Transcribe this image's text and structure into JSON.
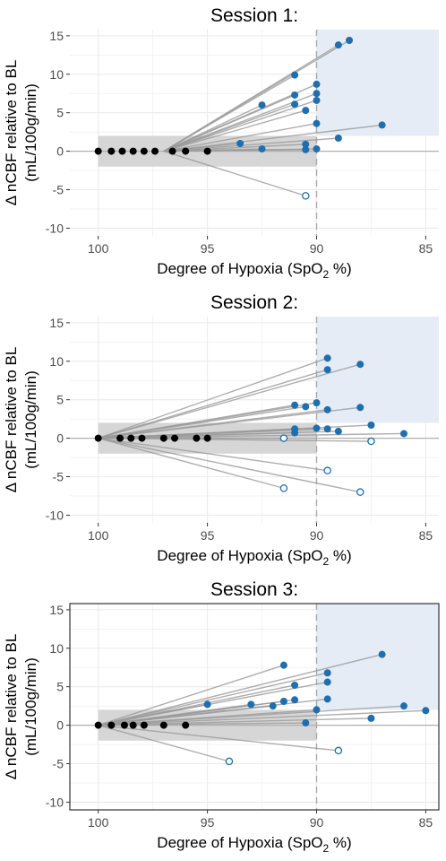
{
  "chart_data": [
    {
      "type": "scatter",
      "title": "Session 1:",
      "xlabel": "Degree of Hypoxia (SpO",
      "xlabel_sub": "2",
      "xlabel_end": " %)",
      "ylabel_line1": "Δ nCBF relative to BL",
      "ylabel_line2": "(mL/100g/min)",
      "x_reversed": true,
      "xlim": [
        101.3,
        84.4
      ],
      "ylim": [
        -11,
        15.8
      ],
      "xticks": [
        100,
        95,
        90,
        85
      ],
      "yticks": [
        15,
        10,
        5,
        0,
        -5,
        -10
      ],
      "baseline_band": {
        "x": [
          100,
          90
        ],
        "y": [
          -2,
          2
        ]
      },
      "highlight_region": {
        "x": [
          90,
          84.4
        ],
        "y": [
          2,
          15.8
        ]
      },
      "threshold_x": 90,
      "panel_border": false,
      "pairs": [
        {
          "x0": 97.0,
          "x1": 88.5,
          "y1": 14.4,
          "end": "filled"
        },
        {
          "x0": 97.0,
          "x1": 89.0,
          "y1": 13.8,
          "end": "filled"
        },
        {
          "x0": 97.0,
          "x1": 90.0,
          "y1": 8.7,
          "end": "filled"
        },
        {
          "x0": 97.0,
          "x1": 90.0,
          "y1": 7.5,
          "end": "filled"
        },
        {
          "x0": 97.0,
          "x1": 90.0,
          "y1": 6.6,
          "end": "filled"
        },
        {
          "x0": 97.0,
          "x1": 90.0,
          "y1": 3.6,
          "end": "filled"
        },
        {
          "x0": 97.0,
          "x1": 90.0,
          "y1": 0.3,
          "end": "filled"
        },
        {
          "x0": 97.0,
          "x1": 91.0,
          "y1": 9.9,
          "end": "filled"
        },
        {
          "x0": 97.0,
          "x1": 91.0,
          "y1": 7.3,
          "end": "filled"
        },
        {
          "x0": 97.0,
          "x1": 91.0,
          "y1": 6.1,
          "end": "filled"
        },
        {
          "x0": 97.0,
          "x1": 90.5,
          "y1": 5.3,
          "end": "filled"
        },
        {
          "x0": 97.0,
          "x1": 90.5,
          "y1": 0.9,
          "end": "filled"
        },
        {
          "x0": 97.0,
          "x1": 90.5,
          "y1": 0.2,
          "end": "filled"
        },
        {
          "x0": 97.0,
          "x1": 92.5,
          "y1": 6.0,
          "end": "filled"
        },
        {
          "x0": 97.0,
          "x1": 92.5,
          "y1": 0.3,
          "end": "filled"
        },
        {
          "x0": 97.0,
          "x1": 93.5,
          "y1": 1.0,
          "end": "filled"
        },
        {
          "x0": 97.0,
          "x1": 89.0,
          "y1": 1.7,
          "end": "filled"
        },
        {
          "x0": 97.0,
          "x1": 87.0,
          "y1": 3.4,
          "end": "filled"
        },
        {
          "x0": 97.0,
          "x1": 90.5,
          "y1": -5.8,
          "end": "open"
        }
      ],
      "baseline_points": [
        {
          "x": 100.0,
          "y": 0
        },
        {
          "x": 99.4,
          "y": 0
        },
        {
          "x": 98.9,
          "y": 0
        },
        {
          "x": 98.4,
          "y": 0
        },
        {
          "x": 97.9,
          "y": 0
        },
        {
          "x": 97.4,
          "y": 0
        },
        {
          "x": 96.6,
          "y": 0
        },
        {
          "x": 96.0,
          "y": 0
        },
        {
          "x": 95.0,
          "y": 0
        }
      ]
    },
    {
      "type": "scatter",
      "title": "Session 2:",
      "xlabel": "Degree of Hypoxia (SpO",
      "xlabel_sub": "2",
      "xlabel_end": " %)",
      "ylabel_line1": "Δ nCBF relative to BL",
      "ylabel_line2": "(mL/100g/min)",
      "x_reversed": true,
      "xlim": [
        101.3,
        84.4
      ],
      "ylim": [
        -11,
        15.8
      ],
      "xticks": [
        100,
        95,
        90,
        85
      ],
      "yticks": [
        15,
        10,
        5,
        0,
        -5,
        -10
      ],
      "baseline_band": {
        "x": [
          100,
          90
        ],
        "y": [
          -2,
          2
        ]
      },
      "highlight_region": {
        "x": [
          90,
          84.4
        ],
        "y": [
          2,
          15.8
        ]
      },
      "threshold_x": 90,
      "panel_border": false,
      "pairs": [
        {
          "x0": 100.0,
          "x1": 89.5,
          "y1": 10.4,
          "end": "filled"
        },
        {
          "x0": 100.0,
          "x1": 89.5,
          "y1": 8.9,
          "end": "filled"
        },
        {
          "x0": 100.0,
          "x1": 88.0,
          "y1": 9.6,
          "end": "filled"
        },
        {
          "x0": 100.0,
          "x1": 89.5,
          "y1": 3.7,
          "end": "filled"
        },
        {
          "x0": 100.0,
          "x1": 91.0,
          "y1": 4.3,
          "end": "filled"
        },
        {
          "x0": 100.0,
          "x1": 90.5,
          "y1": 4.1,
          "end": "filled"
        },
        {
          "x0": 100.0,
          "x1": 90.0,
          "y1": 4.6,
          "end": "filled"
        },
        {
          "x0": 100.0,
          "x1": 88.0,
          "y1": 4.0,
          "end": "filled"
        },
        {
          "x0": 100.0,
          "x1": 87.5,
          "y1": 1.7,
          "end": "filled"
        },
        {
          "x0": 100.0,
          "x1": 91.0,
          "y1": 1.2,
          "end": "filled"
        },
        {
          "x0": 100.0,
          "x1": 91.0,
          "y1": 0.7,
          "end": "filled"
        },
        {
          "x0": 100.0,
          "x1": 90.0,
          "y1": 1.3,
          "end": "filled"
        },
        {
          "x0": 100.0,
          "x1": 89.5,
          "y1": 1.2,
          "end": "filled"
        },
        {
          "x0": 100.0,
          "x1": 89.0,
          "y1": 0.9,
          "end": "filled"
        },
        {
          "x0": 100.0,
          "x1": 86.0,
          "y1": 0.6,
          "end": "filled"
        },
        {
          "x0": 100.0,
          "x1": 91.5,
          "y1": 0.0,
          "end": "open"
        },
        {
          "x0": 100.0,
          "x1": 87.5,
          "y1": -0.4,
          "end": "open"
        },
        {
          "x0": 100.0,
          "x1": 89.5,
          "y1": -4.2,
          "end": "open"
        },
        {
          "x0": 100.0,
          "x1": 91.5,
          "y1": -6.5,
          "end": "open"
        },
        {
          "x0": 100.0,
          "x1": 88.0,
          "y1": -7.0,
          "end": "open"
        }
      ],
      "baseline_points": [
        {
          "x": 100.0,
          "y": 0
        },
        {
          "x": 99.0,
          "y": 0
        },
        {
          "x": 98.5,
          "y": 0
        },
        {
          "x": 98.0,
          "y": 0
        },
        {
          "x": 97.0,
          "y": 0
        },
        {
          "x": 96.5,
          "y": 0
        },
        {
          "x": 95.5,
          "y": 0
        },
        {
          "x": 95.0,
          "y": 0
        }
      ]
    },
    {
      "type": "scatter",
      "title": "Session 3:",
      "xlabel": "Degree of Hypoxia (SpO",
      "xlabel_sub": "2",
      "xlabel_end": " %)",
      "ylabel_line1": "Δ nCBF relative to BL",
      "ylabel_line2": "(mL/100g/min)",
      "x_reversed": true,
      "xlim": [
        101.3,
        84.4
      ],
      "ylim": [
        -11,
        15.8
      ],
      "xticks": [
        100,
        95,
        90,
        85
      ],
      "yticks": [
        15,
        10,
        5,
        0,
        -5,
        -10
      ],
      "baseline_band": {
        "x": [
          100,
          90
        ],
        "y": [
          -2,
          2
        ]
      },
      "highlight_region": {
        "x": [
          90,
          84.4
        ],
        "y": [
          2,
          15.8
        ]
      },
      "threshold_x": 90,
      "panel_border": true,
      "pairs": [
        {
          "x0": 100.0,
          "x1": 87.0,
          "y1": 9.2,
          "end": "filled"
        },
        {
          "x0": 100.0,
          "x1": 91.5,
          "y1": 7.8,
          "end": "filled"
        },
        {
          "x0": 100.0,
          "x1": 89.5,
          "y1": 6.8,
          "end": "filled"
        },
        {
          "x0": 100.0,
          "x1": 89.5,
          "y1": 5.6,
          "end": "filled"
        },
        {
          "x0": 100.0,
          "x1": 91.0,
          "y1": 5.2,
          "end": "filled"
        },
        {
          "x0": 100.0,
          "x1": 89.5,
          "y1": 3.4,
          "end": "filled"
        },
        {
          "x0": 100.0,
          "x1": 91.0,
          "y1": 3.3,
          "end": "filled"
        },
        {
          "x0": 100.0,
          "x1": 91.5,
          "y1": 3.1,
          "end": "filled"
        },
        {
          "x0": 100.0,
          "x1": 93.0,
          "y1": 2.7,
          "end": "filled"
        },
        {
          "x0": 100.0,
          "x1": 95.0,
          "y1": 2.7,
          "end": "filled"
        },
        {
          "x0": 100.0,
          "x1": 92.0,
          "y1": 2.5,
          "end": "filled"
        },
        {
          "x0": 100.0,
          "x1": 86.0,
          "y1": 2.5,
          "end": "filled"
        },
        {
          "x0": 100.0,
          "x1": 90.0,
          "y1": 2.0,
          "end": "filled"
        },
        {
          "x0": 100.0,
          "x1": 85.0,
          "y1": 1.9,
          "end": "filled"
        },
        {
          "x0": 100.0,
          "x1": 87.5,
          "y1": 0.9,
          "end": "filled"
        },
        {
          "x0": 100.0,
          "x1": 90.5,
          "y1": 0.3,
          "end": "filled"
        },
        {
          "x0": 100.0,
          "x1": 89.0,
          "y1": -3.3,
          "end": "open"
        },
        {
          "x0": 100.0,
          "x1": 94.0,
          "y1": -4.7,
          "end": "open"
        }
      ],
      "baseline_points": [
        {
          "x": 100.0,
          "y": 0
        },
        {
          "x": 99.4,
          "y": 0
        },
        {
          "x": 98.8,
          "y": 0
        },
        {
          "x": 98.4,
          "y": 0
        },
        {
          "x": 97.9,
          "y": 0
        },
        {
          "x": 97.0,
          "y": 0
        },
        {
          "x": 96.0,
          "y": 0
        }
      ]
    }
  ],
  "colors": {
    "filled_point": "#1f6fae",
    "baseline_point": "#000000",
    "open_point_stroke": "#1f6fae",
    "connector": "#9a9a9a",
    "baseline_band": "#d6d6d6",
    "highlight_region": "#e6ecf5",
    "grid": "#ebebeb",
    "zero_line": "#b0b0b0",
    "threshold_line": "#a8a8a8",
    "axis_text": "#4d4d4d"
  }
}
